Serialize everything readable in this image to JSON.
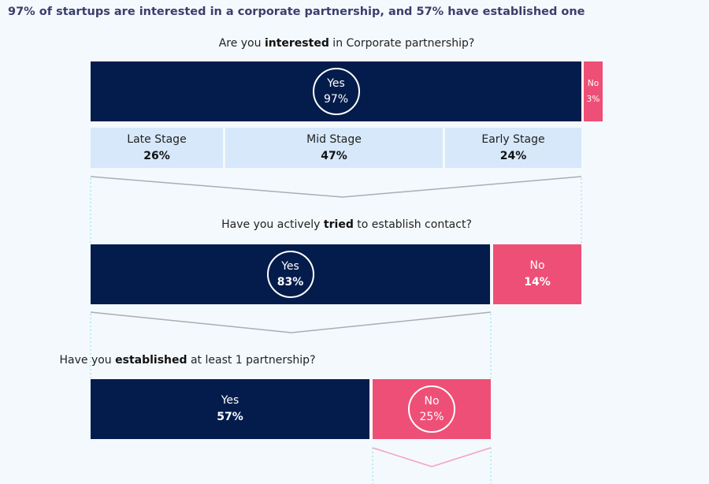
{
  "title": "97% of startups are interested in a corporate partnership, and 57% have established one",
  "q1": {
    "pre": "Are you ",
    "bold": "interested",
    "post": " in Corporate partnership?",
    "yes_label": "Yes",
    "yes_value": "97%",
    "no_label": "No",
    "no_value": "3%"
  },
  "stages": [
    {
      "label": "Late Stage",
      "value": "26%"
    },
    {
      "label": "Mid Stage",
      "value": "47%"
    },
    {
      "label": "Early Stage",
      "value": "24%"
    }
  ],
  "q2": {
    "pre": "Have you actively ",
    "bold": "tried",
    "post": " to establish contact?",
    "yes_label": "Yes",
    "yes_value": "83%",
    "no_label": "No",
    "no_value": "14%"
  },
  "q3": {
    "pre": "Have you ",
    "bold": "established",
    "post": " at least 1 partnership?",
    "yes_label": "Yes",
    "yes_value": "57%",
    "no_label": "No",
    "no_value": "25%"
  },
  "colors": {
    "navy": "#041c4b",
    "pink": "#ee4f76",
    "light_blue": "#d6e8fa",
    "background": "#f4f9fd"
  }
}
